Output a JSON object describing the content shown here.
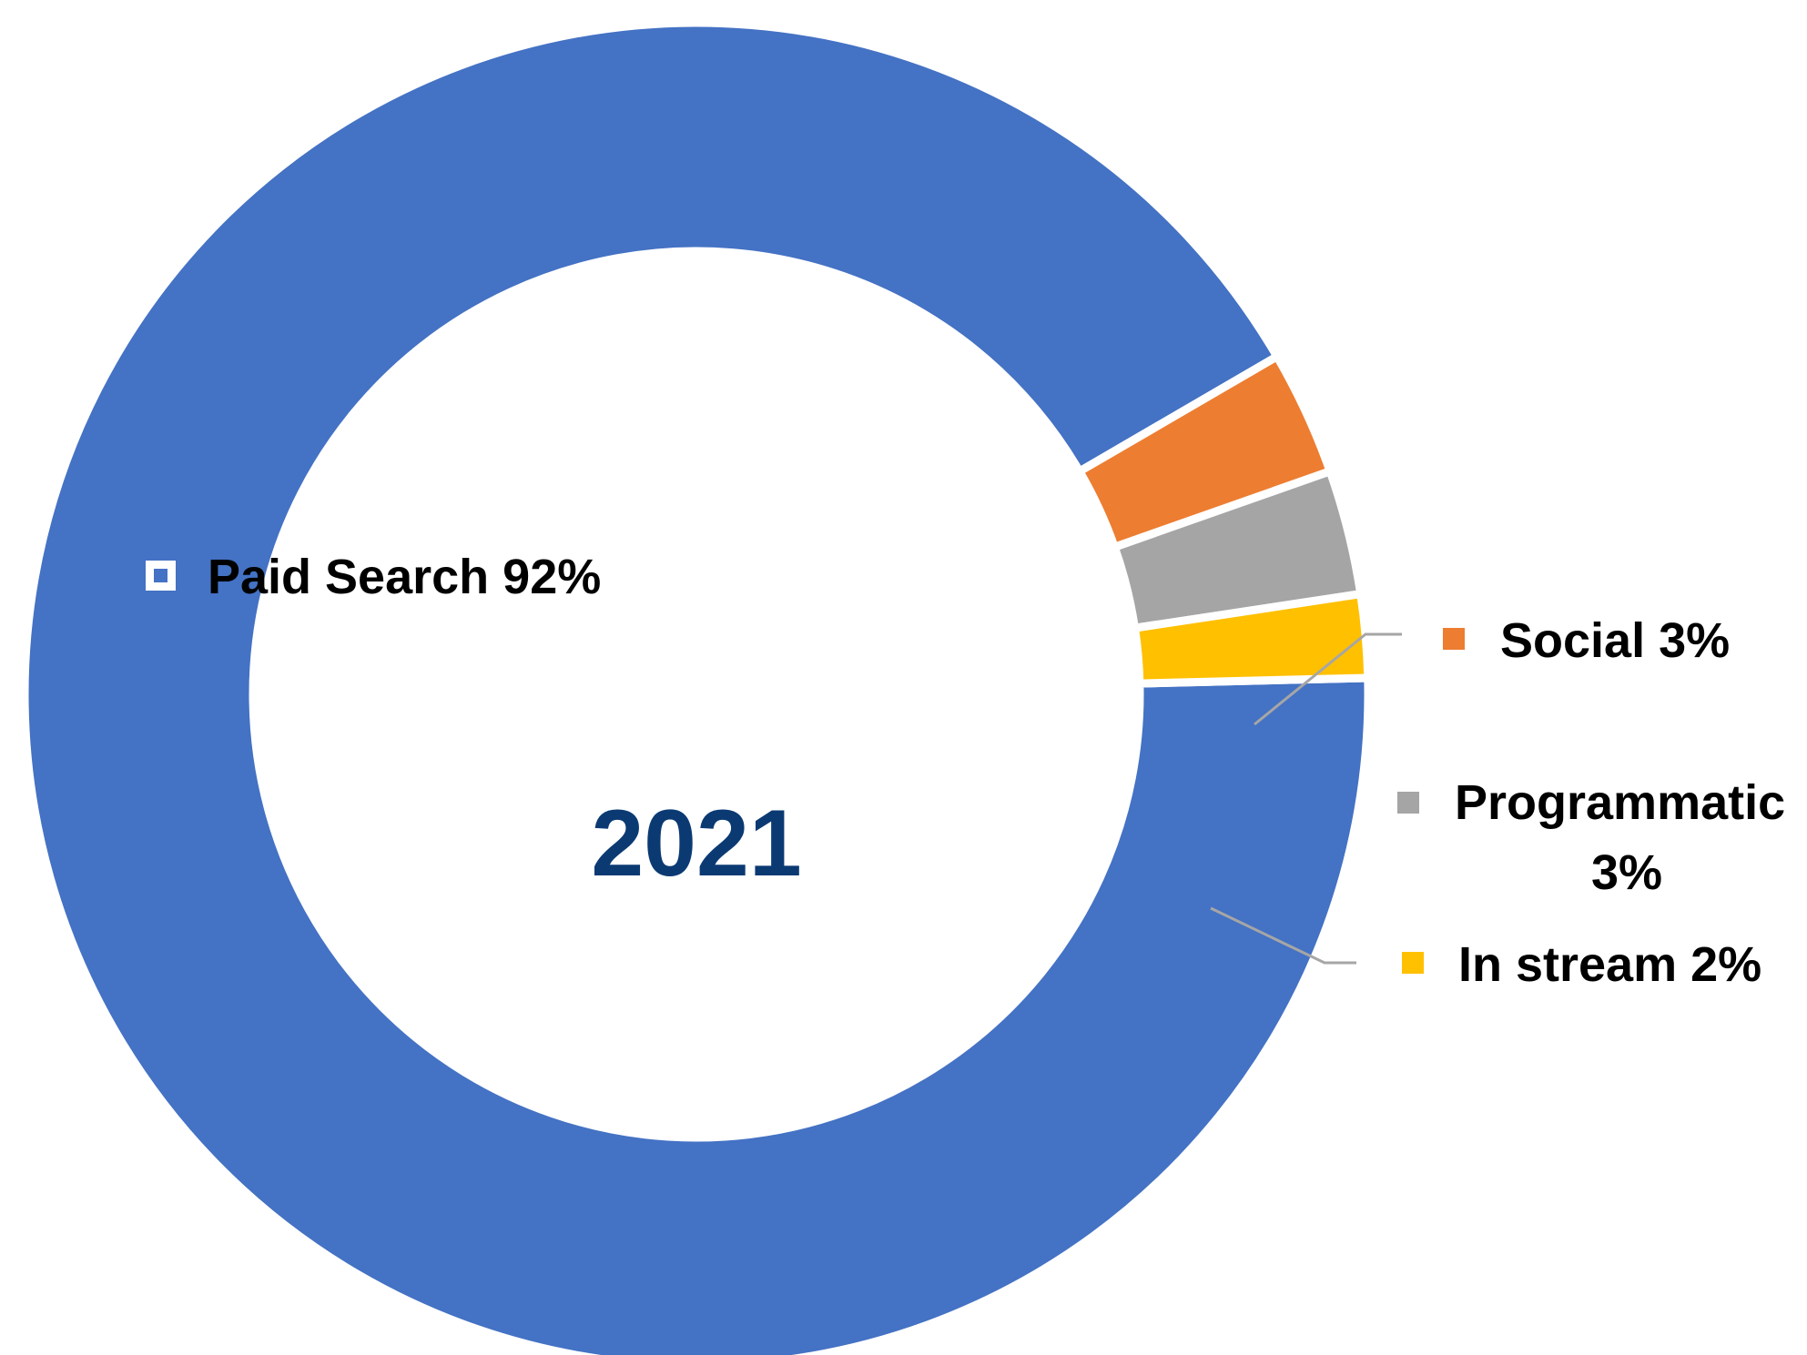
{
  "chart_data": {
    "type": "pie",
    "variant": "donut",
    "center_label": "2021",
    "slices": [
      {
        "label": "Paid Search",
        "percent_label": "92%",
        "value": 92,
        "color": "#4472c4"
      },
      {
        "label": "Social",
        "percent_label": "3%",
        "value": 3,
        "color": "#ed7d31"
      },
      {
        "label": "Programmatic",
        "percent_label": "3%",
        "value": 3,
        "color": "#a5a5a5"
      },
      {
        "label": "In stream",
        "percent_label": "2%",
        "value": 2,
        "color": "#ffc000"
      }
    ],
    "labels": [
      {
        "text": "Paid Search 92%"
      },
      {
        "text": "Social 3%"
      },
      {
        "lines": [
          "Programmatic",
          "3%"
        ]
      },
      {
        "text": "In stream 2%"
      }
    ],
    "legend": "none",
    "grid": false
  }
}
